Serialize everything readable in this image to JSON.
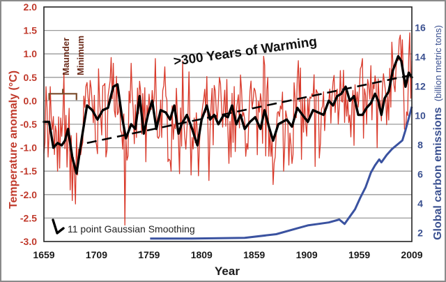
{
  "chart_data": {
    "type": "line",
    "title": ">300 Years of Warming",
    "xlabel": "Year",
    "ylabel": "Temperature anomaly (°C)",
    "y2label_bold": "Global carbon emissions",
    "y2label_normal": "(billion metric tons)",
    "xlim": [
      1659,
      2009
    ],
    "ylim": [
      -3.0,
      2.0
    ],
    "y2lim": [
      1.4,
      17.4
    ],
    "grid": true,
    "x_ticks": [
      "1659",
      "1709",
      "1759",
      "1809",
      "1859",
      "1909",
      "1959",
      "2009"
    ],
    "y_ticks": [
      "2.0",
      "1.5",
      "1.0",
      "0.5",
      "0.0",
      "-0.5",
      "-1.0",
      "-1.5",
      "-2.0",
      "-2.5",
      "-3.0"
    ],
    "y2_ticks": [
      "16",
      "14",
      "12",
      "10",
      "8",
      "6",
      "4",
      "2"
    ],
    "colors": {
      "annual": "#d93a2b",
      "smoothed": "#000000",
      "trend": "#000000",
      "emissions": "#3a52a0",
      "left_axis": "#c0392b",
      "right_axis": "#3a5090",
      "maunder": "#7a4a2a"
    },
    "annotations": {
      "maunder_line1": "Maunder",
      "maunder_line2": "Minimum",
      "maunder_span": [
        1664,
        1690
      ],
      "legend_label": "11 point Gaussian Smoothing",
      "legend_position": "bottom-left"
    },
    "series": [
      {
        "name": "Annual temperature anomaly (°C)",
        "axis": "left",
        "style": "thin-red",
        "generated_from_smoothed": true,
        "spikes": [
          [
            1661,
            0.3
          ],
          [
            1663,
            -1.2
          ],
          [
            1665,
            0.3
          ],
          [
            1672,
            -1.5
          ],
          [
            1678,
            0.6
          ],
          [
            1684,
            -1.9
          ],
          [
            1689,
            -2.2
          ],
          [
            1697,
            0.1
          ],
          [
            1725,
            0.8
          ],
          [
            1736,
            -2.65
          ],
          [
            1742,
            0.8
          ],
          [
            1756,
            -1.3
          ],
          [
            1765,
            0.9
          ],
          [
            1780,
            -1.5
          ],
          [
            1791,
            0.85
          ],
          [
            1806,
            -1.6
          ],
          [
            1816,
            -1.7
          ],
          [
            1826,
            0.5
          ],
          [
            1837,
            -1.2
          ],
          [
            1846,
            0.55
          ],
          [
            1862,
            -1.15
          ],
          [
            1868,
            0.95
          ],
          [
            1879,
            -1.2
          ],
          [
            1887,
            -1.5
          ],
          [
            1903,
            0.7
          ],
          [
            1917,
            -1.4
          ],
          [
            1934,
            0.4
          ],
          [
            1944,
            0.65
          ],
          [
            1954,
            -0.95
          ],
          [
            1962,
            0.9
          ],
          [
            1970,
            0.75
          ],
          [
            1976,
            -1.0
          ],
          [
            1990,
            1.25
          ],
          [
            1998,
            1.4
          ],
          [
            2002,
            -0.6
          ],
          [
            2007,
            1.45
          ]
        ]
      },
      {
        "name": "11 point Gaussian Smoothing",
        "axis": "left",
        "style": "thick-black",
        "x": [
          1659,
          1664,
          1668,
          1672,
          1676,
          1679,
          1682,
          1686,
          1690,
          1695,
          1700,
          1705,
          1710,
          1715,
          1720,
          1725,
          1729,
          1733,
          1737,
          1742,
          1746,
          1750,
          1754,
          1758,
          1762,
          1766,
          1770,
          1775,
          1779,
          1783,
          1787,
          1790,
          1795,
          1800,
          1805,
          1809,
          1814,
          1817,
          1821,
          1825,
          1830,
          1834,
          1838,
          1842,
          1846,
          1850,
          1855,
          1860,
          1865,
          1869,
          1873,
          1877,
          1882,
          1886,
          1890,
          1895,
          1900,
          1905,
          1910,
          1915,
          1920,
          1925,
          1930,
          1934,
          1938,
          1942,
          1946,
          1950,
          1954,
          1958,
          1962,
          1966,
          1970,
          1974,
          1977,
          1980,
          1983,
          1987,
          1991,
          1996,
          1999,
          2003,
          2006,
          2009
        ],
        "values": [
          -0.45,
          -0.45,
          -1.0,
          -0.9,
          -0.95,
          -0.85,
          -0.6,
          -1.2,
          -1.55,
          -0.8,
          -0.1,
          -0.2,
          -0.4,
          -0.2,
          -0.15,
          0.3,
          0.35,
          -0.3,
          -0.8,
          -0.5,
          -0.6,
          0.1,
          -0.7,
          -0.3,
          0.0,
          -0.6,
          -0.2,
          -0.25,
          -0.4,
          -0.1,
          -0.7,
          -0.5,
          -0.3,
          -0.6,
          -0.95,
          -0.4,
          -0.1,
          -0.4,
          -0.3,
          -0.5,
          -0.3,
          -0.35,
          -0.1,
          -0.5,
          -0.3,
          -0.6,
          -0.45,
          -0.35,
          -0.6,
          -0.2,
          -0.55,
          -0.85,
          -0.5,
          -0.45,
          -0.4,
          -0.55,
          -0.15,
          -0.3,
          -0.45,
          -0.2,
          -0.25,
          -0.3,
          0.0,
          -0.1,
          0.1,
          0.15,
          0.3,
          0.0,
          0.1,
          -0.3,
          -0.3,
          -0.15,
          -0.05,
          0.15,
          0.0,
          -0.3,
          0.05,
          0.2,
          0.65,
          0.95,
          0.85,
          0.3,
          0.6,
          0.5
        ]
      },
      {
        "name": "Linear trend",
        "axis": "left",
        "style": "dashed-black",
        "x": [
          1700,
          2009
        ],
        "values": [
          -0.9,
          0.55
        ]
      },
      {
        "name": "Global carbon emissions (billion metric tons)",
        "axis": "right",
        "style": "thick-blue",
        "x": [
          1760,
          1800,
          1850,
          1880,
          1900,
          1910,
          1920,
          1930,
          1940,
          1945,
          1950,
          1955,
          1960,
          1965,
          1970,
          1974,
          1978,
          1980,
          1985,
          1990,
          1995,
          2000,
          2003,
          2006,
          2009
        ],
        "values": [
          1.6,
          1.6,
          1.65,
          1.9,
          2.3,
          2.5,
          2.6,
          2.7,
          2.9,
          2.6,
          3.1,
          3.6,
          4.4,
          5.1,
          6.1,
          6.6,
          7.0,
          6.8,
          7.3,
          7.7,
          8.0,
          8.3,
          9.0,
          9.8,
          10.6
        ]
      }
    ]
  }
}
